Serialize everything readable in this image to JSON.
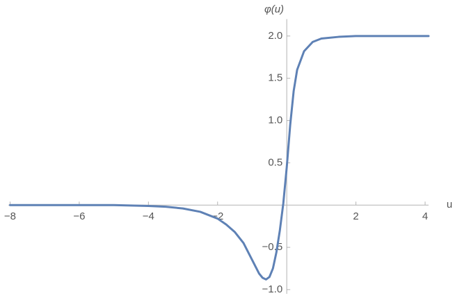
{
  "chart_data": {
    "type": "line",
    "xlabel": "u",
    "ylabel": "φ(u)",
    "x": [
      -8,
      -6,
      -5,
      -4,
      -3.5,
      -3,
      -2.5,
      -2,
      -1.75,
      -1.5,
      -1.25,
      -1,
      -0.9,
      -0.8,
      -0.7,
      -0.6,
      -0.5,
      -0.4,
      -0.3,
      -0.2,
      -0.1,
      0,
      0.1,
      0.2,
      0.3,
      0.5,
      0.75,
      1,
      1.5,
      2,
      3,
      4.1
    ],
    "series": [
      {
        "color": "#5e81b5",
        "values": [
          0,
          0,
          0,
          -0.01,
          -0.02,
          -0.04,
          -0.08,
          -0.16,
          -0.23,
          -0.32,
          -0.45,
          -0.65,
          -0.73,
          -0.81,
          -0.86,
          -0.88,
          -0.85,
          -0.75,
          -0.56,
          -0.3,
          0.02,
          0.45,
          0.95,
          1.35,
          1.6,
          1.82,
          1.93,
          1.97,
          1.99,
          2,
          2,
          2
        ]
      }
    ],
    "xlim": [
      -8.05,
      4.1
    ],
    "ylim": [
      -1.05,
      2.2
    ],
    "xticks": [
      {
        "value": -8,
        "label": "−8"
      },
      {
        "value": -6,
        "label": "−6"
      },
      {
        "value": -4,
        "label": "−4"
      },
      {
        "value": -2,
        "label": "−2"
      },
      2,
      4
    ],
    "yticks": [
      {
        "value": -1,
        "label": "−1.0"
      },
      {
        "value": -0.5,
        "label": "−0.5"
      },
      0.5,
      {
        "value": 1,
        "label": "1.0"
      },
      1.5,
      {
        "value": 2,
        "label": "2.0"
      }
    ],
    "grid": false
  }
}
